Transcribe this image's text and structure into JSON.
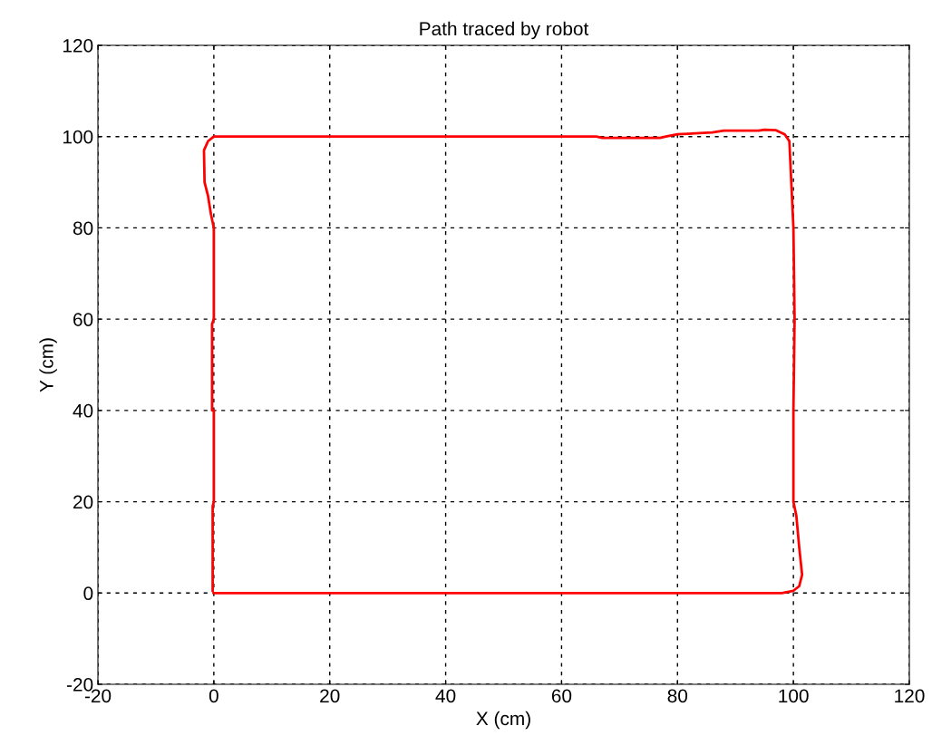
{
  "chart_data": {
    "type": "line",
    "title": "Path traced by robot",
    "xlabel": "X (cm)",
    "ylabel": "Y (cm)",
    "xlim": [
      -20,
      120
    ],
    "ylim": [
      -20,
      120
    ],
    "xticks": [
      -20,
      0,
      20,
      40,
      60,
      80,
      100,
      120
    ],
    "yticks": [
      -20,
      0,
      20,
      40,
      60,
      80,
      100,
      120
    ],
    "grid": true,
    "series": [
      {
        "color": "#ff0000",
        "x": [
          0,
          98,
          100,
          101,
          101.5,
          101,
          100.5,
          100,
          100,
          100.2,
          100,
          99.3,
          98.5,
          97,
          95,
          94,
          88,
          86,
          80,
          78,
          77,
          67,
          66,
          0,
          -1,
          -1.7,
          -1.6,
          -1,
          -0.5,
          0,
          0,
          -0.3,
          -0.3,
          0,
          0,
          -0.2,
          -0.2
        ],
        "values": [
          0,
          0,
          0.5,
          1.5,
          4,
          10,
          17,
          20,
          40,
          60,
          80,
          99,
          100.5,
          101.4,
          101.5,
          101.3,
          101.3,
          100.9,
          100.5,
          100,
          99.7,
          99.7,
          100,
          100,
          99,
          97,
          90,
          87,
          83,
          80,
          60,
          59,
          40,
          40,
          20,
          19,
          0.5
        ]
      }
    ]
  }
}
